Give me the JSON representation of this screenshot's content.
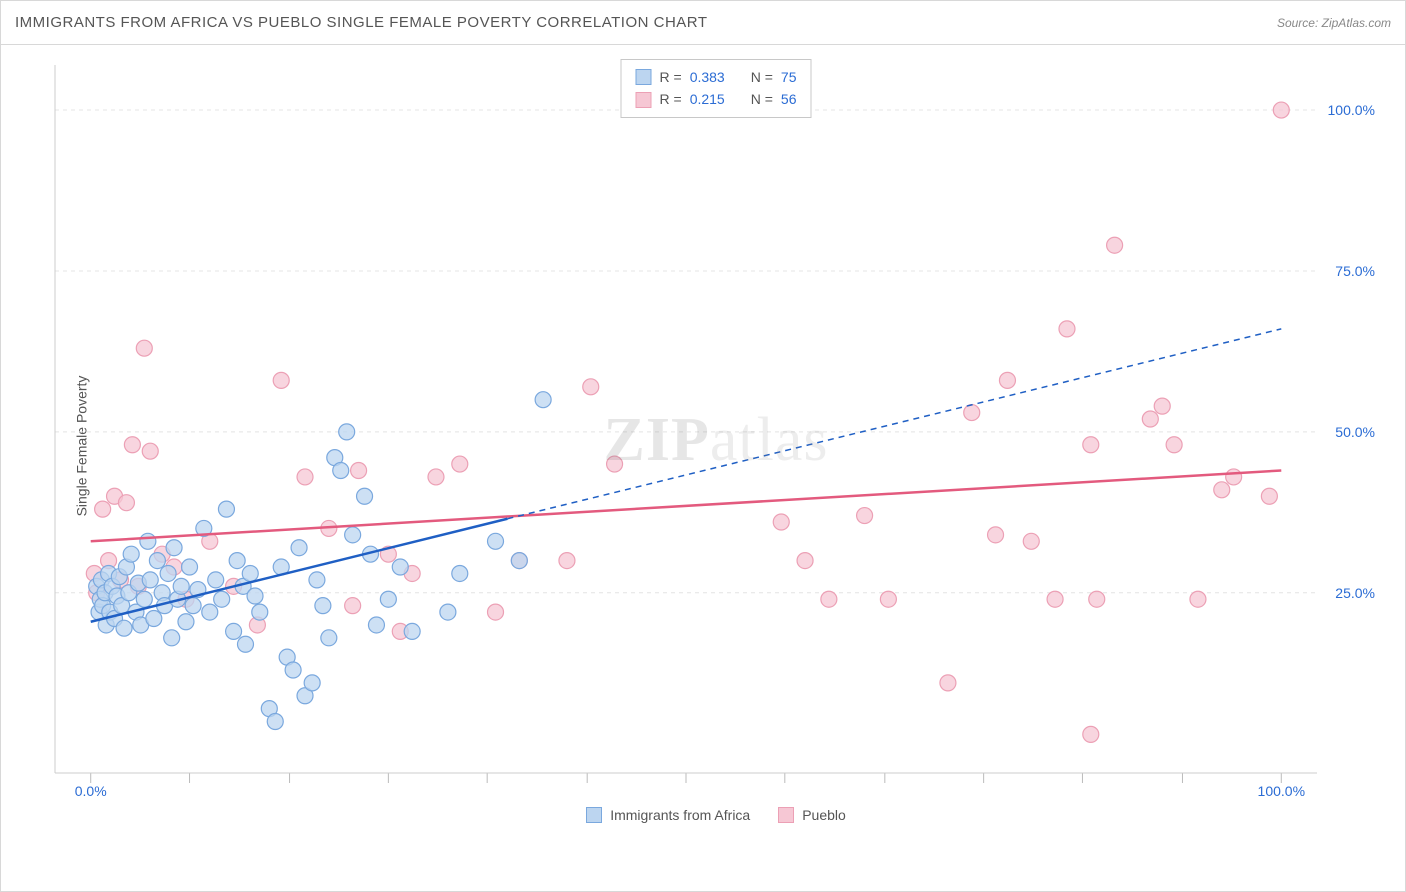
{
  "header": {
    "title": "IMMIGRANTS FROM AFRICA VS PUEBLO SINGLE FEMALE POVERTY CORRELATION CHART",
    "source_label": "Source: ",
    "source_value": "ZipAtlas.com"
  },
  "ylabel": "Single Female Poverty",
  "watermark_a": "ZIP",
  "watermark_b": "atlas",
  "chart": {
    "type": "scatter",
    "background_color": "#ffffff",
    "grid_color": "#e4e4e4",
    "axis_color": "#cccccc",
    "tick_color": "#bbbbbb",
    "xlim": [
      -3,
      103
    ],
    "ylim": [
      -3,
      107
    ],
    "xticks": [
      0,
      8.3,
      16.7,
      25,
      33.3,
      41.7,
      50,
      58.3,
      66.7,
      75,
      83.3,
      91.7,
      100
    ],
    "xtick_labels": {
      "0": "0.0%",
      "100": "100.0%"
    },
    "yticks": [
      0,
      25,
      50,
      75,
      100
    ],
    "ytick_labels": {
      "25": "25.0%",
      "50": "50.0%",
      "75": "75.0%",
      "100": "100.0%"
    },
    "series": [
      {
        "name": "Immigrants from Africa",
        "color_fill": "#bcd5f0",
        "color_stroke": "#7aa8de",
        "marker_radius": 8,
        "marker_opacity": 0.75,
        "R": "0.383",
        "N": "75",
        "trend": {
          "x1": 0,
          "y1": 20.5,
          "x2_solid": 35,
          "y2_solid": 36.5,
          "x2_dash": 100,
          "y2_dash": 66,
          "color": "#1f5fc4",
          "width": 2.5
        },
        "points": [
          [
            0.5,
            26
          ],
          [
            0.7,
            22
          ],
          [
            0.8,
            24
          ],
          [
            0.9,
            27
          ],
          [
            1,
            23
          ],
          [
            1.2,
            25
          ],
          [
            1.3,
            20
          ],
          [
            1.5,
            28
          ],
          [
            1.6,
            22
          ],
          [
            1.8,
            26
          ],
          [
            2,
            21
          ],
          [
            2.2,
            24.5
          ],
          [
            2.4,
            27.5
          ],
          [
            2.6,
            23
          ],
          [
            2.8,
            19.5
          ],
          [
            3,
            29
          ],
          [
            3.2,
            25
          ],
          [
            3.4,
            31
          ],
          [
            3.8,
            22
          ],
          [
            4,
            26.5
          ],
          [
            4.2,
            20
          ],
          [
            4.5,
            24
          ],
          [
            4.8,
            33
          ],
          [
            5,
            27
          ],
          [
            5.3,
            21
          ],
          [
            5.6,
            30
          ],
          [
            6,
            25
          ],
          [
            6.2,
            23
          ],
          [
            6.5,
            28
          ],
          [
            6.8,
            18
          ],
          [
            7,
            32
          ],
          [
            7.3,
            24
          ],
          [
            7.6,
            26
          ],
          [
            8,
            20.5
          ],
          [
            8.3,
            29
          ],
          [
            8.6,
            23
          ],
          [
            9,
            25.5
          ],
          [
            9.5,
            35
          ],
          [
            10,
            22
          ],
          [
            10.5,
            27
          ],
          [
            11,
            24
          ],
          [
            11.4,
            38
          ],
          [
            12,
            19
          ],
          [
            12.3,
            30
          ],
          [
            12.8,
            26
          ],
          [
            13,
            17
          ],
          [
            13.4,
            28
          ],
          [
            13.8,
            24.5
          ],
          [
            14.2,
            22
          ],
          [
            15,
            7
          ],
          [
            15.5,
            5
          ],
          [
            16,
            29
          ],
          [
            16.5,
            15
          ],
          [
            17,
            13
          ],
          [
            17.5,
            32
          ],
          [
            18,
            9
          ],
          [
            18.6,
            11
          ],
          [
            19,
            27
          ],
          [
            19.5,
            23
          ],
          [
            20,
            18
          ],
          [
            20.5,
            46
          ],
          [
            21,
            44
          ],
          [
            21.5,
            50
          ],
          [
            22,
            34
          ],
          [
            23,
            40
          ],
          [
            23.5,
            31
          ],
          [
            24,
            20
          ],
          [
            25,
            24
          ],
          [
            26,
            29
          ],
          [
            27,
            19
          ],
          [
            30,
            22
          ],
          [
            31,
            28
          ],
          [
            34,
            33
          ],
          [
            36,
            30
          ],
          [
            38,
            55
          ]
        ]
      },
      {
        "name": "Pueblo",
        "color_fill": "#f6c7d4",
        "color_stroke": "#eca0b5",
        "marker_radius": 8,
        "marker_opacity": 0.75,
        "R": "0.215",
        "N": "56",
        "trend": {
          "x1": 0,
          "y1": 33,
          "x2": 100,
          "y2": 44,
          "color": "#e35a7e",
          "width": 2.5
        },
        "points": [
          [
            0.3,
            28
          ],
          [
            0.5,
            25
          ],
          [
            1,
            38
          ],
          [
            1.5,
            30
          ],
          [
            2,
            40
          ],
          [
            2.5,
            27
          ],
          [
            3,
            39
          ],
          [
            3.5,
            48
          ],
          [
            4,
            26
          ],
          [
            4.5,
            63
          ],
          [
            5,
            47
          ],
          [
            6,
            31
          ],
          [
            7,
            29
          ],
          [
            8,
            24
          ],
          [
            10,
            33
          ],
          [
            12,
            26
          ],
          [
            14,
            20
          ],
          [
            16,
            58
          ],
          [
            18,
            43
          ],
          [
            20,
            35
          ],
          [
            22,
            23
          ],
          [
            22.5,
            44
          ],
          [
            25,
            31
          ],
          [
            26,
            19
          ],
          [
            27,
            28
          ],
          [
            29,
            43
          ],
          [
            31,
            45
          ],
          [
            34,
            22
          ],
          [
            36,
            30
          ],
          [
            40,
            30
          ],
          [
            42,
            57
          ],
          [
            44,
            45
          ],
          [
            58,
            36
          ],
          [
            60,
            30
          ],
          [
            62,
            24
          ],
          [
            65,
            37
          ],
          [
            67,
            24
          ],
          [
            72,
            11
          ],
          [
            74,
            53
          ],
          [
            76,
            34
          ],
          [
            77,
            58
          ],
          [
            79,
            33
          ],
          [
            81,
            24
          ],
          [
            82,
            66
          ],
          [
            84,
            48
          ],
          [
            84.5,
            24
          ],
          [
            86,
            79
          ],
          [
            89,
            52
          ],
          [
            90,
            54
          ],
          [
            91,
            48
          ],
          [
            93,
            24
          ],
          [
            84,
            3
          ],
          [
            95,
            41
          ],
          [
            96,
            43
          ],
          [
            99,
            40
          ],
          [
            100,
            100
          ]
        ]
      }
    ]
  },
  "legend_top_rows": [
    {
      "swatch_fill": "#bcd5f0",
      "swatch_stroke": "#7aa8de",
      "r_label": "R =",
      "r_val": "0.383",
      "n_label": "N =",
      "n_val": "75"
    },
    {
      "swatch_fill": "#f6c7d4",
      "swatch_stroke": "#eca0b5",
      "r_label": "R =",
      "r_val": "0.215",
      "n_label": "N =",
      "n_val": "56"
    }
  ],
  "legend_bottom_items": [
    {
      "swatch_fill": "#bcd5f0",
      "swatch_stroke": "#7aa8de",
      "label": "Immigrants from Africa"
    },
    {
      "swatch_fill": "#f6c7d4",
      "swatch_stroke": "#eca0b5",
      "label": "Pueblo"
    }
  ]
}
